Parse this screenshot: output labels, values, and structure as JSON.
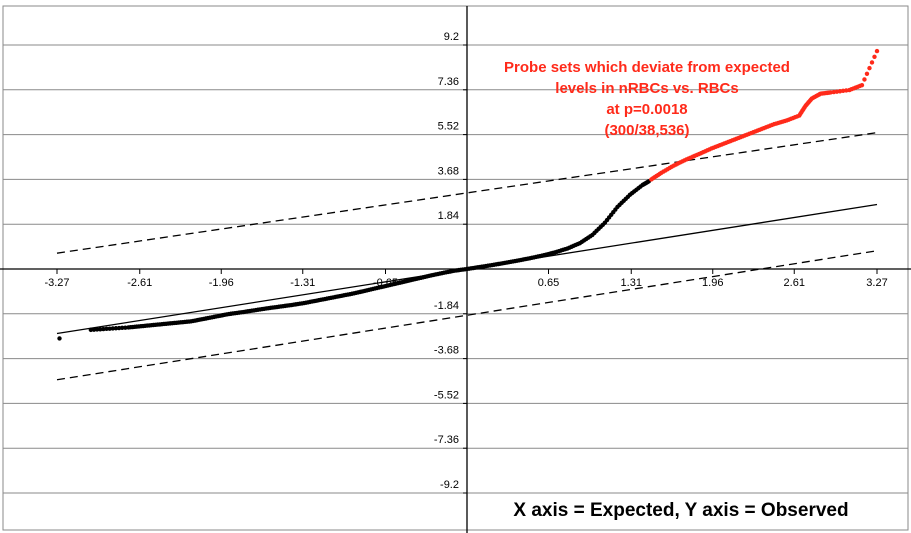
{
  "chart_data": {
    "type": "scatter",
    "title": "",
    "xlabel": "",
    "ylabel": "",
    "xlim": [
      -3.27,
      3.27
    ],
    "ylim": [
      -9.2,
      9.2
    ],
    "x_ticks": [
      "-3.27",
      "-2.61",
      "-1.96",
      "-1.31",
      "-0.65",
      "0.65",
      "1.31",
      "1.96",
      "2.61",
      "3.27"
    ],
    "x_tick_values": [
      -3.27,
      -2.61,
      -1.96,
      -1.31,
      -0.65,
      0.65,
      1.31,
      1.96,
      2.61,
      3.27
    ],
    "y_ticks": [
      "9.2",
      "7.36",
      "5.52",
      "3.68",
      "1.84",
      "-1.84",
      "-3.68",
      "-5.52",
      "-7.36",
      "-9.2"
    ],
    "y_tick_values": [
      9.2,
      7.36,
      5.52,
      3.68,
      1.84,
      -1.84,
      -3.68,
      -5.52,
      -7.36,
      -9.2
    ],
    "grid": "horizontal",
    "reference_lines": [
      {
        "style": "solid",
        "from": [
          -3.27,
          -2.65
        ],
        "to": [
          3.27,
          2.65
        ]
      },
      {
        "style": "dashed",
        "from": [
          -3.27,
          0.65
        ],
        "to": [
          3.27,
          5.6
        ]
      },
      {
        "style": "dashed",
        "from": [
          -3.27,
          -4.55
        ],
        "to": [
          3.27,
          0.75
        ]
      }
    ],
    "series": [
      {
        "color": "#000000",
        "points": [
          [
            -3.25,
            -2.85
          ],
          [
            -3.0,
            -2.5
          ],
          [
            -2.85,
            -2.45
          ],
          [
            -2.7,
            -2.4
          ],
          [
            -2.6,
            -2.35
          ],
          [
            -2.5,
            -2.3
          ],
          [
            -2.4,
            -2.25
          ],
          [
            -2.3,
            -2.2
          ],
          [
            -2.2,
            -2.15
          ],
          [
            -2.1,
            -2.05
          ],
          [
            -2.0,
            -1.95
          ],
          [
            -1.9,
            -1.85
          ],
          [
            -1.8,
            -1.78
          ],
          [
            -1.7,
            -1.7
          ],
          [
            -1.6,
            -1.62
          ],
          [
            -1.5,
            -1.55
          ],
          [
            -1.4,
            -1.48
          ],
          [
            -1.3,
            -1.4
          ],
          [
            -1.2,
            -1.3
          ],
          [
            -1.1,
            -1.2
          ],
          [
            -1.0,
            -1.1
          ],
          [
            -0.9,
            -1.0
          ],
          [
            -0.8,
            -0.88
          ],
          [
            -0.7,
            -0.76
          ],
          [
            -0.6,
            -0.64
          ],
          [
            -0.5,
            -0.52
          ],
          [
            -0.4,
            -0.4
          ],
          [
            -0.3,
            -0.28
          ],
          [
            -0.2,
            -0.17
          ],
          [
            -0.1,
            -0.07
          ],
          [
            0.0,
            0.0
          ],
          [
            0.1,
            0.08
          ],
          [
            0.2,
            0.16
          ],
          [
            0.3,
            0.25
          ],
          [
            0.4,
            0.34
          ],
          [
            0.5,
            0.44
          ],
          [
            0.6,
            0.55
          ],
          [
            0.7,
            0.68
          ],
          [
            0.8,
            0.84
          ],
          [
            0.9,
            1.06
          ],
          [
            1.0,
            1.4
          ],
          [
            1.1,
            1.9
          ],
          [
            1.2,
            2.55
          ],
          [
            1.3,
            3.05
          ],
          [
            1.4,
            3.45
          ],
          [
            1.45,
            3.6
          ]
        ]
      },
      {
        "color": "#ff2a1a",
        "points": [
          [
            1.47,
            3.68
          ],
          [
            1.55,
            3.95
          ],
          [
            1.65,
            4.25
          ],
          [
            1.75,
            4.5
          ],
          [
            1.85,
            4.72
          ],
          [
            1.95,
            4.95
          ],
          [
            2.05,
            5.15
          ],
          [
            2.15,
            5.35
          ],
          [
            2.25,
            5.55
          ],
          [
            2.35,
            5.75
          ],
          [
            2.45,
            5.95
          ],
          [
            2.55,
            6.1
          ],
          [
            2.65,
            6.3
          ],
          [
            2.7,
            6.7
          ],
          [
            2.75,
            7.0
          ],
          [
            2.82,
            7.2
          ],
          [
            2.9,
            7.25
          ],
          [
            3.05,
            7.35
          ],
          [
            3.15,
            7.55
          ],
          [
            3.27,
            8.95
          ]
        ]
      }
    ],
    "annotation": [
      "Probe sets which deviate from expected",
      "levels in nRBCs vs. RBCs",
      "at p=0.0018",
      "(300/38,536)"
    ],
    "caption": "X axis = Expected, Y axis = Observed"
  }
}
